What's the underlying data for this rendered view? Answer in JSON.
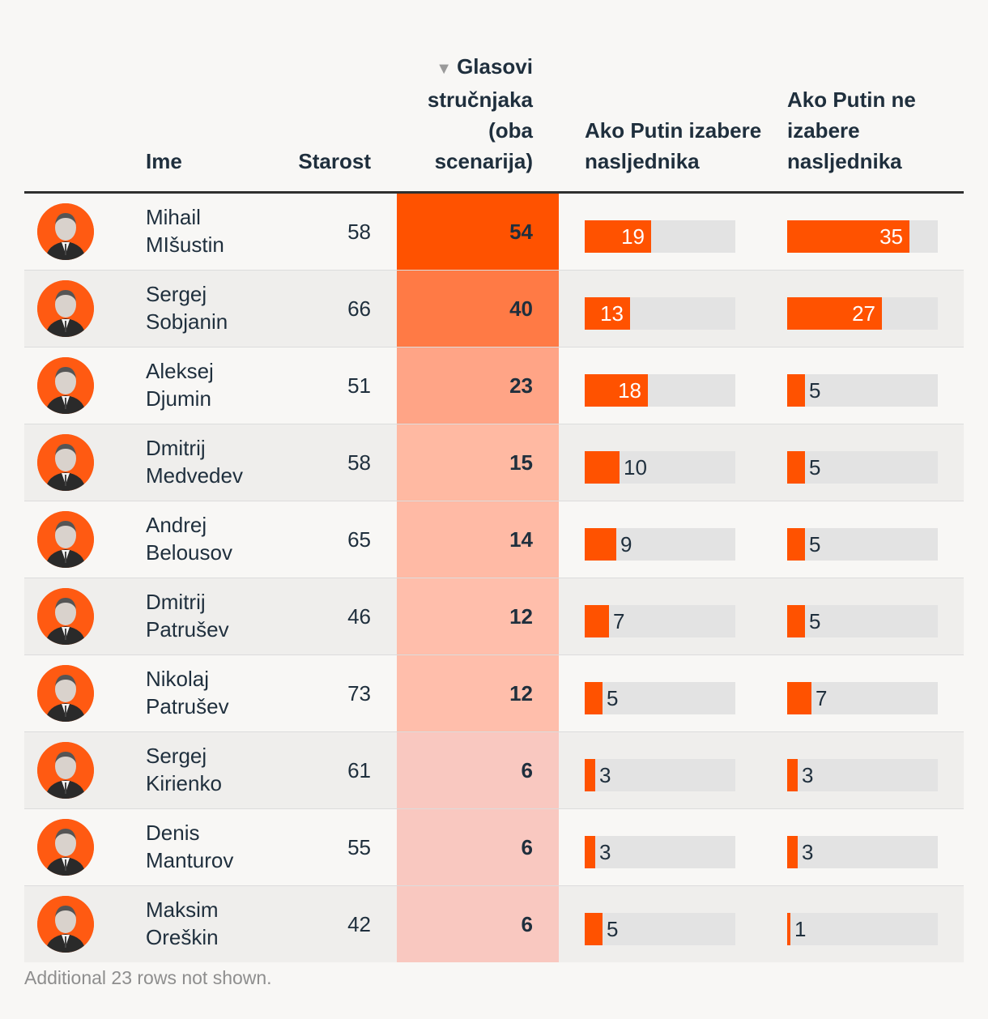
{
  "colors": {
    "accent": "#ff5200",
    "bar_bg": "#e3e3e3",
    "text": "#1f2f3d",
    "footnote": "#8e8e8e"
  },
  "columns": {
    "name": "Ime",
    "age": "Starost",
    "votes": "Glasovi stručnjaka (oba scenarija)",
    "votes_sort_icon": "sort-descending-icon",
    "if_successor": "Ako Putin izabere nasljednika",
    "if_no_successor": "Ako Putin ne izabere nasljednika"
  },
  "rows": [
    {
      "first": "Mihail",
      "last": "MIšustin",
      "age": "58",
      "votes": 54,
      "if": 19,
      "ifnot": 35,
      "heat": "#ff5200"
    },
    {
      "first": "Sergej",
      "last": "Sobjanin",
      "age": "66",
      "votes": 40,
      "if": 13,
      "ifnot": 27,
      "heat": "#ff7a45"
    },
    {
      "first": "Aleksej",
      "last": "Djumin",
      "age": "51",
      "votes": 23,
      "if": 18,
      "ifnot": 5,
      "heat": "#ffa486"
    },
    {
      "first": "Dmitrij",
      "last": "Medvedev",
      "age": "58",
      "votes": 15,
      "if": 10,
      "ifnot": 5,
      "heat": "#ffb9a2"
    },
    {
      "first": "Andrej",
      "last": "Belousov",
      "age": "65",
      "votes": 14,
      "if": 9,
      "ifnot": 5,
      "heat": "#ffbaa5"
    },
    {
      "first": "Dmitrij",
      "last": "Patrušev",
      "age": "46",
      "votes": 12,
      "if": 7,
      "ifnot": 5,
      "heat": "#ffbeab"
    },
    {
      "first": "Nikolaj",
      "last": "Patrušev",
      "age": "73",
      "votes": 12,
      "if": 5,
      "ifnot": 7,
      "heat": "#ffbeab"
    },
    {
      "first": "Sergej",
      "last": "Kirienko",
      "age": "61",
      "votes": 6,
      "if": 3,
      "ifnot": 3,
      "heat": "#f9c8c0"
    },
    {
      "first": "Denis",
      "last": "Manturov",
      "age": "55",
      "votes": 6,
      "if": 3,
      "ifnot": 3,
      "heat": "#f9c8c0"
    },
    {
      "first": "Maksim",
      "last": "Oreškin",
      "age": "42",
      "votes": 6,
      "if": 5,
      "ifnot": 1,
      "heat": "#f9c8c0"
    }
  ],
  "bar_max": 43,
  "footnote": "Additional 23 rows not shown."
}
